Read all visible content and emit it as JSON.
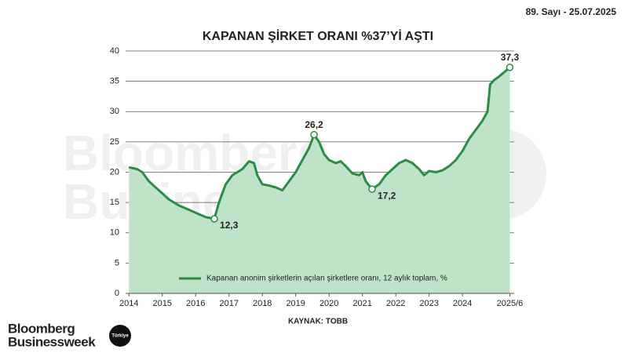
{
  "header": {
    "issue": "89. Sayı - 25.07.2025"
  },
  "logo": {
    "line1": "Bloomberg",
    "line2": "Businessweek",
    "badge": "Türkiye"
  },
  "chart_data": {
    "type": "area",
    "title": "KAPANAN ŞİRKET ORANI %37’Yİ AŞTI",
    "source": "KAYNAK: TOBB",
    "x": [
      2014.0,
      2014.25,
      2014.4,
      2014.6,
      2014.8,
      2015.0,
      2015.2,
      2015.5,
      2015.8,
      2016.0,
      2016.3,
      2016.56,
      2016.7,
      2016.9,
      2017.1,
      2017.4,
      2017.6,
      2017.75,
      2017.85,
      2018.0,
      2018.2,
      2018.4,
      2018.6,
      2018.8,
      2019.0,
      2019.2,
      2019.4,
      2019.55,
      2019.7,
      2019.85,
      2020.0,
      2020.2,
      2020.35,
      2020.5,
      2020.7,
      2020.9,
      2021.0,
      2021.1,
      2021.29,
      2021.5,
      2021.7,
      2021.9,
      2022.1,
      2022.3,
      2022.5,
      2022.7,
      2022.85,
      2023.0,
      2023.2,
      2023.4,
      2023.6,
      2023.8,
      2024.0,
      2024.2,
      2024.4,
      2024.6,
      2024.75,
      2024.83,
      2024.95,
      2025.1,
      2025.25,
      2025.42
    ],
    "series": [
      {
        "name": "Kapanan anonim şirketlerin açılan şirketlere oranı, 12 aylık toplam, %",
        "color": "#2e8b46",
        "fill": "#bfe3c9",
        "values": [
          20.8,
          20.5,
          20.0,
          18.5,
          17.5,
          16.5,
          15.5,
          14.5,
          13.8,
          13.3,
          12.6,
          12.3,
          15.0,
          18.0,
          19.5,
          20.5,
          21.8,
          21.5,
          19.5,
          18.0,
          17.8,
          17.5,
          17.0,
          18.5,
          20.0,
          22.0,
          24.0,
          26.2,
          25.0,
          23.0,
          22.0,
          21.5,
          21.8,
          21.0,
          19.8,
          19.5,
          20.0,
          18.5,
          17.2,
          18.0,
          19.5,
          20.5,
          21.5,
          22.0,
          21.5,
          20.5,
          19.5,
          20.2,
          20.0,
          20.3,
          21.0,
          22.0,
          23.5,
          25.5,
          27.0,
          28.5,
          30.0,
          34.5,
          35.2,
          35.8,
          36.5,
          37.3
        ],
        "value_labels": [
          null,
          null,
          null,
          null,
          null,
          null,
          null,
          null,
          null,
          null,
          null,
          "12,3",
          null,
          null,
          null,
          null,
          null,
          null,
          null,
          null,
          null,
          null,
          null,
          null,
          null,
          null,
          null,
          "26,2",
          null,
          null,
          null,
          null,
          null,
          null,
          null,
          null,
          null,
          null,
          "17,2",
          null,
          null,
          null,
          null,
          null,
          null,
          null,
          null,
          null,
          null,
          null,
          null,
          null,
          null,
          null,
          null,
          null,
          null,
          null,
          null,
          null,
          null,
          "37,3"
        ]
      }
    ],
    "xlim": [
      2013.9,
      2025.55
    ],
    "xticks": [
      2014,
      2015,
      2016,
      2017,
      2018,
      2019,
      2020,
      2021,
      2022,
      2023,
      2024,
      {
        "value": 2025.42,
        "label": "2025/6"
      }
    ],
    "ylim": [
      0,
      40
    ],
    "yticks": [
      0,
      5,
      10,
      15,
      20,
      25,
      30,
      35,
      40
    ],
    "grid": true,
    "legend": "bottom"
  }
}
